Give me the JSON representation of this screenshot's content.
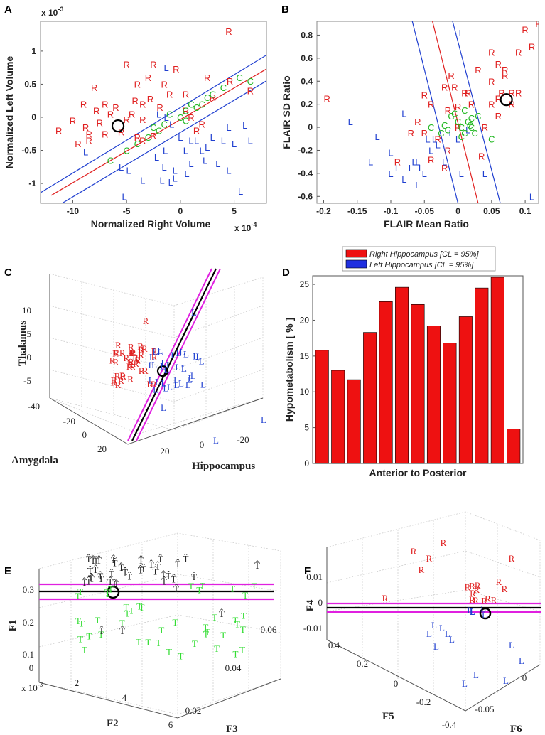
{
  "colors": {
    "right": "#e02020",
    "left": "#1f3fd0",
    "control": "#22b822",
    "bar": "#ee1111",
    "magenta": "#e020e0",
    "black": "#000000",
    "that": "#222222",
    "t": "#33dd33"
  },
  "chart_data": [
    {
      "panel": "A",
      "type": "scatter",
      "xlabel": "Normalized Right Volume",
      "ylabel": "Normalized Left Volume",
      "x_exponent_label": "x 10",
      "x_exponent": "-4",
      "y_exponent_label": "x 10",
      "y_exponent": "-3",
      "xlim": [
        -13,
        8
      ],
      "ylim": [
        -1.3,
        1.45
      ],
      "xticks": [
        "-10",
        "-5",
        "0",
        "5"
      ],
      "xtick_values": [
        -10,
        -5,
        0,
        5
      ],
      "yticks": [
        "1",
        "0.5",
        "0",
        "-0.5",
        "-1"
      ],
      "ytick_values": [
        1,
        0.5,
        0,
        -0.5,
        -1
      ],
      "lines": [
        {
          "color": "blue",
          "x": [
            -13,
            8
          ],
          "y": [
            -1.14,
            0.94
          ]
        },
        {
          "color": "red",
          "x": [
            -12,
            8
          ],
          "y": [
            -1.18,
            0.73
          ]
        },
        {
          "color": "blue",
          "x": [
            -11,
            8
          ],
          "y": [
            -1.3,
            0.55
          ]
        }
      ],
      "highlight": {
        "x": -5.8,
        "y": -0.13
      },
      "series": [
        {
          "name": "R",
          "points": [
            [
              4.5,
              1.3
            ],
            [
              -8,
              0.45
            ],
            [
              -5,
              0.8
            ],
            [
              -2.5,
              0.8
            ],
            [
              -0.4,
              0.73
            ],
            [
              -3,
              0.6
            ],
            [
              -4,
              0.5
            ],
            [
              -1.5,
              0.5
            ],
            [
              2.5,
              0.6
            ],
            [
              4.6,
              0.55
            ],
            [
              6.5,
              0.4
            ],
            [
              -1,
              0.35
            ],
            [
              0.5,
              0.35
            ],
            [
              3,
              0.3
            ],
            [
              -9,
              0.2
            ],
            [
              -7,
              0.2
            ],
            [
              -6,
              0.15
            ],
            [
              -4.2,
              0.25
            ],
            [
              -3.5,
              0.2
            ],
            [
              -2.8,
              0.28
            ],
            [
              -1.9,
              0.15
            ],
            [
              -7.8,
              0.1
            ],
            [
              -6.5,
              0.05
            ],
            [
              -8.8,
              -0.15
            ],
            [
              -10,
              -0.05
            ],
            [
              -7.5,
              -0.08
            ],
            [
              -5,
              -0.03
            ],
            [
              -3.5,
              -0.03
            ],
            [
              -4.5,
              0.05
            ],
            [
              -11.3,
              -0.2
            ],
            [
              -8.5,
              -0.25
            ],
            [
              -7,
              -0.25
            ],
            [
              -5.5,
              -0.22
            ],
            [
              -4,
              -0.3
            ],
            [
              -3.5,
              -0.35
            ],
            [
              -2.5,
              -0.28
            ],
            [
              -9.5,
              -0.4
            ],
            [
              -8.5,
              -0.35
            ],
            [
              1,
              0
            ],
            [
              0.5,
              0.1
            ],
            [
              2,
              -0.1
            ],
            [
              1.5,
              -0.2
            ]
          ]
        },
        {
          "name": "L",
          "points": [
            [
              -1.3,
              0.75
            ],
            [
              -2,
              0.05
            ],
            [
              -1.3,
              0
            ],
            [
              -0.8,
              -0.1
            ],
            [
              1.5,
              -0.35
            ],
            [
              3,
              -0.3
            ],
            [
              4.5,
              -0.15
            ],
            [
              6,
              -0.12
            ],
            [
              4,
              -0.35
            ],
            [
              5,
              -0.4
            ],
            [
              6.5,
              -0.35
            ],
            [
              2.5,
              -0.45
            ],
            [
              0.5,
              -0.5
            ],
            [
              -1.4,
              -0.5
            ],
            [
              -2.2,
              -0.6
            ],
            [
              -1.5,
              -0.75
            ],
            [
              -0.5,
              -0.8
            ],
            [
              1,
              -0.7
            ],
            [
              2.3,
              -0.65
            ],
            [
              0.6,
              -0.85
            ],
            [
              4.5,
              -0.8
            ],
            [
              -5.5,
              -0.75
            ],
            [
              -4.8,
              -0.8
            ],
            [
              -3.5,
              -0.95
            ],
            [
              -1.7,
              -0.95
            ],
            [
              -0.9,
              -0.98
            ],
            [
              -0.5,
              -0.92
            ],
            [
              -5.2,
              -1.2
            ],
            [
              5.6,
              -1.12
            ],
            [
              -8.8,
              -0.52
            ],
            [
              0,
              -0.3
            ],
            [
              1,
              -0.35
            ],
            [
              2,
              -0.5
            ],
            [
              3.5,
              -0.7
            ]
          ]
        },
        {
          "name": "C",
          "points": [
            [
              -1,
              0.05
            ],
            [
              -1.5,
              -0.1
            ],
            [
              0,
              0
            ],
            [
              0.5,
              0.1
            ],
            [
              1,
              0.2
            ],
            [
              1.5,
              0.15
            ],
            [
              2,
              0.2
            ],
            [
              2.5,
              0.3
            ],
            [
              3,
              0.35
            ],
            [
              4,
              0.45
            ],
            [
              5.5,
              0.6
            ],
            [
              6.5,
              0.55
            ],
            [
              -2,
              -0.2
            ],
            [
              -3,
              -0.3
            ],
            [
              -4,
              -0.4
            ],
            [
              -5,
              -0.5
            ],
            [
              -6.5,
              -0.65
            ],
            [
              -2.5,
              -0.15
            ],
            [
              0.5,
              -0.05
            ]
          ]
        }
      ]
    },
    {
      "panel": "B",
      "type": "scatter",
      "xlabel": "FLAIR Mean Ratio",
      "ylabel": "FLAIR SD Ratio",
      "xlim": [
        -0.21,
        0.12
      ],
      "ylim": [
        -0.66,
        0.92
      ],
      "xticks": [
        "-0.2",
        "-0.15",
        "-0.1",
        "-0.05",
        "0",
        "0.05",
        "0.1"
      ],
      "xtick_values": [
        -0.2,
        -0.15,
        -0.1,
        -0.05,
        0,
        0.05,
        0.1
      ],
      "yticks": [
        "0.8",
        "0.6",
        "0.4",
        "0.2",
        "0",
        "-0.2",
        "-0.4",
        "-0.6"
      ],
      "ytick_values": [
        0.8,
        0.6,
        0.4,
        0.2,
        0,
        -0.2,
        -0.4,
        -0.6
      ],
      "lines": [
        {
          "color": "blue",
          "x": [
            -0.068,
            0
          ],
          "y": [
            0.92,
            -0.66
          ]
        },
        {
          "color": "red",
          "x": [
            -0.038,
            0.03
          ],
          "y": [
            0.92,
            -0.66
          ]
        },
        {
          "color": "blue",
          "x": [
            -0.008,
            0.063
          ],
          "y": [
            0.92,
            -0.66
          ]
        }
      ],
      "highlight": {
        "x": 0.072,
        "y": 0.24
      },
      "series": [
        {
          "name": "R",
          "points": [
            [
              0.1,
              0.85
            ],
            [
              0.11,
              0.7
            ],
            [
              0.09,
              0.65
            ],
            [
              0.06,
              0.55
            ],
            [
              0.07,
              0.5
            ],
            [
              -0.195,
              0.25
            ],
            [
              0.03,
              0.5
            ],
            [
              0.05,
              0.4
            ],
            [
              -0.01,
              0.45
            ],
            [
              -0.005,
              0.35
            ],
            [
              0.01,
              0.3
            ],
            [
              -0.02,
              0.35
            ],
            [
              -0.05,
              0.28
            ],
            [
              -0.04,
              0.2
            ],
            [
              -0.015,
              0.15
            ],
            [
              0,
              0.18
            ],
            [
              0.02,
              0.2
            ],
            [
              0.05,
              0.2
            ],
            [
              0.06,
              0.25
            ],
            [
              0.08,
              0.3
            ],
            [
              0.09,
              0.3
            ],
            [
              0.08,
              0.2
            ],
            [
              0.065,
              0.3
            ],
            [
              0.06,
              0.1
            ],
            [
              0.04,
              0
            ],
            [
              0.015,
              0.3
            ],
            [
              -0.06,
              0.05
            ],
            [
              -0.07,
              -0.05
            ],
            [
              -0.03,
              -0.1
            ],
            [
              0,
              0
            ],
            [
              -0.015,
              -0.2
            ],
            [
              -0.09,
              -0.3
            ],
            [
              -0.04,
              -0.28
            ],
            [
              -0.02,
              -0.35
            ],
            [
              -0.05,
              -0.05
            ],
            [
              0.035,
              -0.25
            ],
            [
              0.12,
              0.9
            ],
            [
              0.05,
              0.65
            ],
            [
              0.07,
              0.45
            ]
          ]
        },
        {
          "name": "L",
          "points": [
            [
              0.005,
              0.82
            ],
            [
              -0.16,
              0.05
            ],
            [
              -0.12,
              -0.08
            ],
            [
              -0.13,
              -0.3
            ],
            [
              -0.1,
              -0.22
            ],
            [
              -0.09,
              -0.35
            ],
            [
              -0.1,
              -0.4
            ],
            [
              -0.08,
              -0.45
            ],
            [
              -0.07,
              -0.35
            ],
            [
              -0.06,
              -0.3
            ],
            [
              -0.05,
              -0.4
            ],
            [
              -0.04,
              -0.2
            ],
            [
              -0.03,
              -0.15
            ],
            [
              -0.02,
              -0.3
            ],
            [
              -0.01,
              -0.05
            ],
            [
              0,
              -0.1
            ],
            [
              -0.045,
              -0.1
            ],
            [
              -0.06,
              -0.5
            ],
            [
              -0.055,
              -0.35
            ],
            [
              -0.035,
              -0.1
            ],
            [
              0.005,
              -0.4
            ],
            [
              0.04,
              -0.4
            ],
            [
              0.11,
              -0.6
            ],
            [
              -0.08,
              0.12
            ],
            [
              -0.065,
              -0.3
            ],
            [
              0.015,
              -0.02
            ]
          ]
        },
        {
          "name": "C",
          "points": [
            [
              -0.01,
              0.1
            ],
            [
              0,
              0.05
            ],
            [
              0.005,
              0
            ],
            [
              0.01,
              -0.05
            ],
            [
              0.015,
              0.05
            ],
            [
              0.02,
              0
            ],
            [
              0.025,
              -0.05
            ],
            [
              0.03,
              0.1
            ],
            [
              0.02,
              0.08
            ],
            [
              0.01,
              0.15
            ],
            [
              -0.02,
              0.02
            ],
            [
              -0.025,
              -0.05
            ],
            [
              0.05,
              -0.1
            ],
            [
              0.005,
              -0.08
            ],
            [
              -0.005,
              0.12
            ],
            [
              0.018,
              0.02
            ],
            [
              -0.015,
              -0.02
            ],
            [
              -0.04,
              0
            ]
          ]
        }
      ]
    },
    {
      "panel": "C",
      "type": "scatter3d",
      "zlabel": "Thalamus",
      "xlabel": "Amygdala",
      "ylabel": "Hippocampus",
      "zticks": [
        "10",
        "5",
        "0",
        "-5"
      ],
      "xticks": [
        "-40",
        "-20",
        "0",
        "20"
      ],
      "yticks": [
        "20",
        "0",
        "-20"
      ],
      "series": [
        {
          "name": "R",
          "count": 40
        },
        {
          "name": "L",
          "count": 38
        }
      ]
    },
    {
      "panel": "D",
      "type": "bar",
      "xlabel": "Anterior to Posterior",
      "ylabel": "Hypometabolism [ % ]",
      "ylim": [
        0,
        26.2
      ],
      "yticks": [
        "25",
        "20",
        "15",
        "10",
        "5",
        "0"
      ],
      "ytick_values": [
        25,
        20,
        15,
        10,
        5,
        0
      ],
      "values": [
        15.8,
        13,
        11.7,
        18.3,
        22.6,
        24.6,
        22.2,
        19.2,
        16.8,
        20.5,
        24.5,
        26,
        4.8
      ],
      "legend": [
        "Right Hippocampus [CL = 95%]",
        "Left Hippocampus [CL = 95%]"
      ]
    },
    {
      "panel": "E",
      "type": "scatter3d",
      "zlabel": "F1",
      "xlabel": "F2",
      "ylabel": "F3",
      "zticks": [
        "0.3",
        "0.2",
        "0.1"
      ],
      "xticks": [
        "0",
        "2",
        "4",
        "6"
      ],
      "yticks": [
        "0.06",
        "0.04",
        "0.02"
      ],
      "exponent_label": "x 10",
      "exponent": "-3",
      "series": [
        {
          "name": "T",
          "count": 44
        },
        {
          "name": "That",
          "count": 36
        }
      ]
    },
    {
      "panel": "F",
      "type": "scatter3d",
      "zlabel": "F4",
      "xlabel": "F5",
      "ylabel": "F6",
      "zticks": [
        "0.01",
        "0",
        "-0.01"
      ],
      "xticks": [
        "0.4",
        "0.2",
        "0",
        "-0.2",
        "-0.4"
      ],
      "yticks": [
        "0",
        "-0.05"
      ],
      "series": [
        {
          "name": "R",
          "count": 18
        },
        {
          "name": "L",
          "count": 16
        }
      ]
    }
  ]
}
